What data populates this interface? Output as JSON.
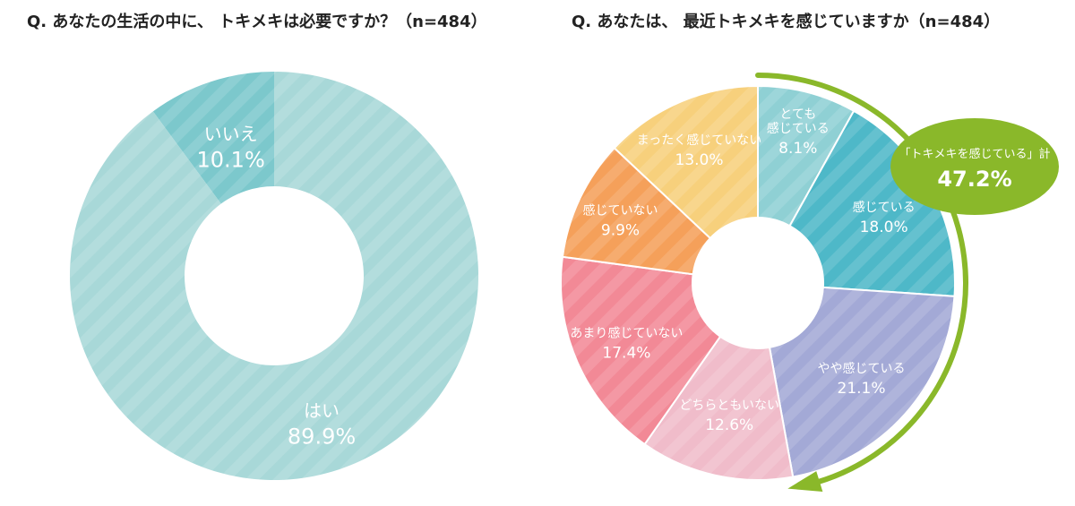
{
  "chart_data": [
    {
      "type": "pie",
      "title": "Q. あなたの生活の中に、 トキメキは必要ですか？（n=484）",
      "categories": [
        "いいえ",
        "はい"
      ],
      "values": [
        10.1,
        89.9
      ],
      "labels": [
        "10.1%",
        "89.9%"
      ],
      "colors": [
        "#7cc8cc",
        "#a8d8d8"
      ]
    },
    {
      "type": "pie",
      "title": "Q. あなたは、 最近トキメキを感じていますか（n=484）",
      "categories": [
        "とても\n感じている",
        "感じている",
        "やや感じている",
        "どちらともいない",
        "あまり感じていない",
        "感じていない",
        "まったく感じていない"
      ],
      "values": [
        8.1,
        18.0,
        21.1,
        12.6,
        17.4,
        9.9,
        13.0
      ],
      "labels": [
        "8.1%",
        "18.0%",
        "21.1%",
        "12.6%",
        "17.4%",
        "9.9%",
        "13.0%"
      ],
      "colors": [
        "#8fd0d4",
        "#4eb8c8",
        "#a3a9d6",
        "#f0bcca",
        "#f28996",
        "#f5a05a",
        "#f7d07c"
      ],
      "annotation": {
        "label": "「トキメキを感じている」計",
        "value": "47.2%",
        "color": "#8ab82a"
      }
    }
  ]
}
